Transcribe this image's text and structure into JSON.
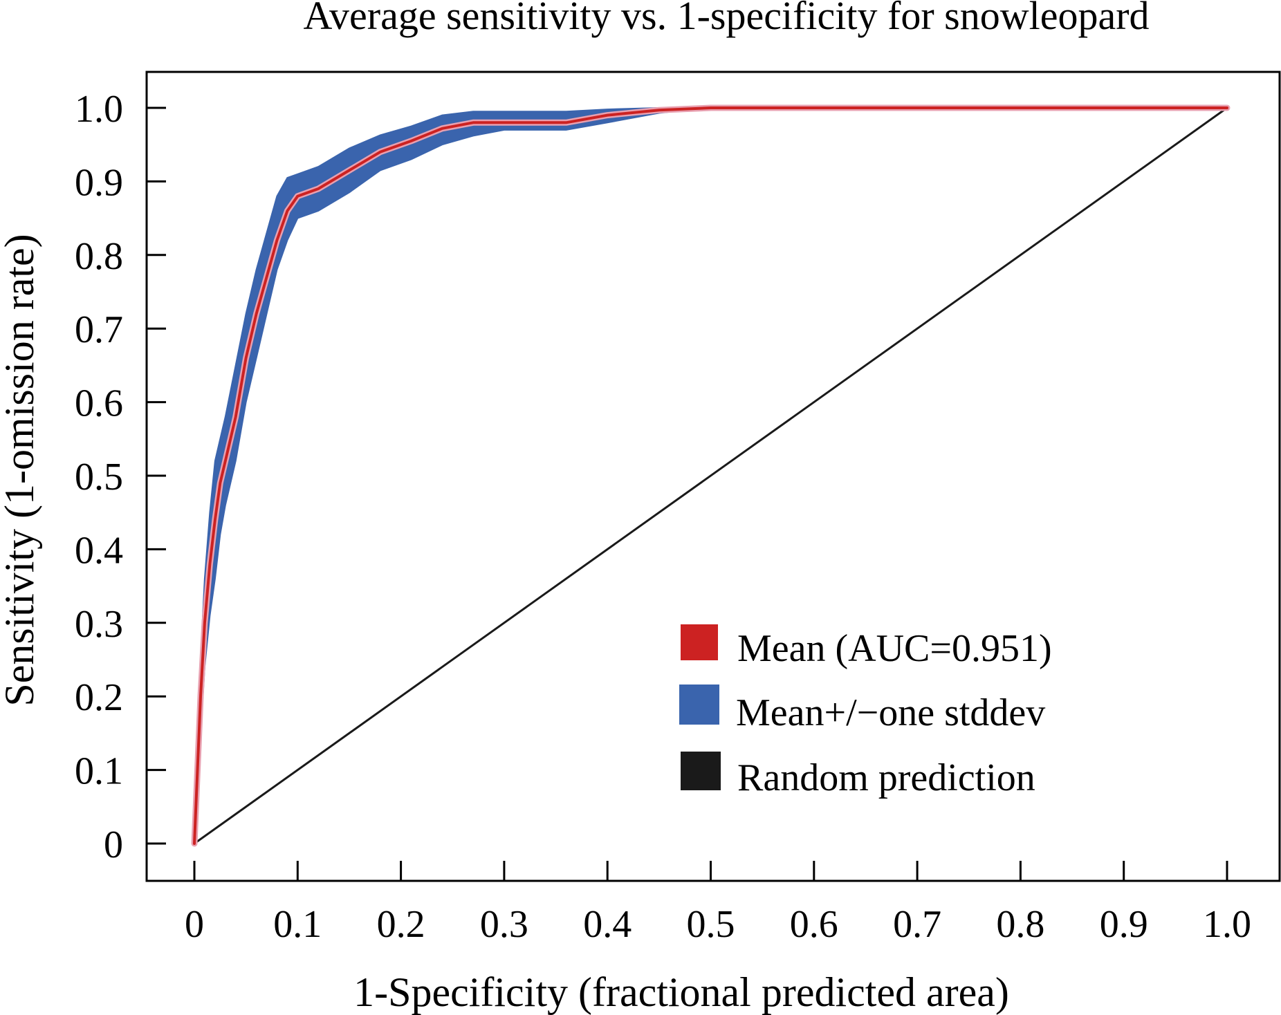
{
  "chart_data": {
    "type": "line",
    "title": "Average sensitivity vs. 1-specificity for snowleopard",
    "xlabel": "1-Specificity (fractional predicted area)",
    "ylabel": "Sensitivity (1-omission rate)",
    "xlim": [
      0,
      1
    ],
    "ylim": [
      0,
      1
    ],
    "xticks": [
      "0",
      "0.1",
      "0.2",
      "0.3",
      "0.4",
      "0.5",
      "0.6",
      "0.7",
      "0.8",
      "0.9",
      "1.0"
    ],
    "yticks": [
      "0",
      "0.1",
      "0.2",
      "0.3",
      "0.4",
      "0.5",
      "0.6",
      "0.7",
      "0.8",
      "0.9",
      "1.0"
    ],
    "grid": false,
    "legend_position": "bottom-right",
    "legend": [
      {
        "label": "Mean (AUC=0.951)",
        "color": "#cc2222"
      },
      {
        "label": "Mean+/−one stddev",
        "color": "#3a64ad"
      },
      {
        "label": "Random prediction",
        "color": "#1a1a1a"
      }
    ],
    "series": [
      {
        "name": "Mean (AUC=0.951)",
        "color": "#cc2222",
        "x": [
          0,
          0.003,
          0.006,
          0.01,
          0.015,
          0.02,
          0.025,
          0.03,
          0.04,
          0.05,
          0.06,
          0.07,
          0.08,
          0.09,
          0.1,
          0.12,
          0.15,
          0.18,
          0.21,
          0.24,
          0.27,
          0.3,
          0.36,
          0.4,
          0.45,
          0.5,
          0.6,
          0.7,
          0.8,
          0.9,
          1.0
        ],
        "y": [
          0,
          0.1,
          0.2,
          0.3,
          0.38,
          0.44,
          0.49,
          0.52,
          0.58,
          0.66,
          0.72,
          0.77,
          0.82,
          0.86,
          0.88,
          0.89,
          0.915,
          0.94,
          0.955,
          0.972,
          0.98,
          0.98,
          0.98,
          0.99,
          0.997,
          1.0,
          1.0,
          1.0,
          1.0,
          1.0,
          1.0
        ]
      },
      {
        "name": "Mean+/−one stddev",
        "color": "#3a64ad",
        "x": [
          0,
          0.003,
          0.006,
          0.01,
          0.015,
          0.02,
          0.025,
          0.03,
          0.04,
          0.05,
          0.06,
          0.07,
          0.08,
          0.09,
          0.1,
          0.12,
          0.15,
          0.18,
          0.21,
          0.24,
          0.27,
          0.3,
          0.36,
          0.4,
          0.45,
          0.5
        ],
        "upper": [
          0,
          0.14,
          0.25,
          0.36,
          0.45,
          0.52,
          0.55,
          0.58,
          0.65,
          0.72,
          0.78,
          0.83,
          0.88,
          0.905,
          0.91,
          0.92,
          0.945,
          0.963,
          0.975,
          0.99,
          0.995,
          0.995,
          0.995,
          0.998,
          1.0,
          1.0
        ],
        "lower": [
          0,
          0.06,
          0.15,
          0.24,
          0.31,
          0.36,
          0.42,
          0.46,
          0.52,
          0.6,
          0.66,
          0.72,
          0.78,
          0.82,
          0.85,
          0.86,
          0.885,
          0.915,
          0.93,
          0.95,
          0.962,
          0.97,
          0.97,
          0.98,
          0.993,
          1.0
        ]
      },
      {
        "name": "Random prediction",
        "color": "#1a1a1a",
        "x": [
          0,
          1
        ],
        "y": [
          0,
          1
        ]
      }
    ]
  }
}
